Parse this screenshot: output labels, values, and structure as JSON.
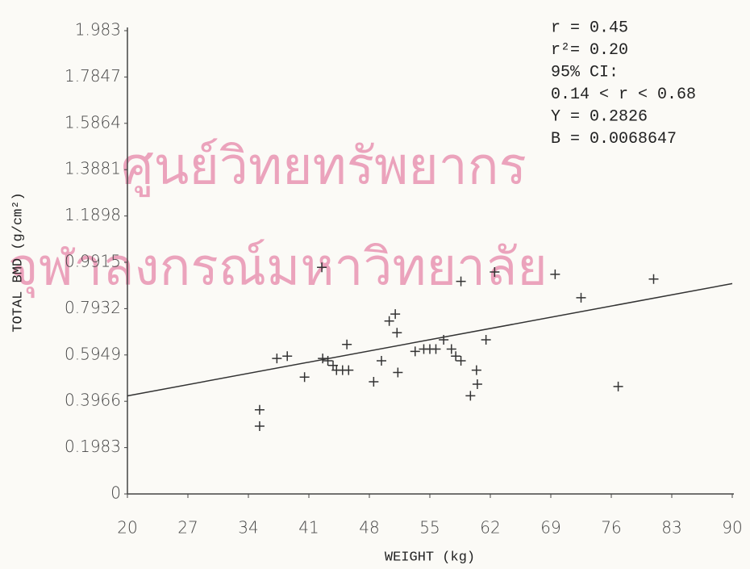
{
  "chart_data": {
    "type": "scatter",
    "x_label": "WEIGHT (kg)",
    "y_label": "TOTAL BMD (g/cm²)",
    "xlim": [
      20,
      90
    ],
    "xticks": [
      20,
      27,
      34,
      41,
      48,
      55,
      62,
      69,
      76,
      83,
      90
    ],
    "ylim": [
      0,
      1.983
    ],
    "yticks": [
      0,
      0.1983,
      0.3966,
      0.5949,
      0.7932,
      0.9915,
      1.1898,
      1.3881,
      1.5864,
      1.7847,
      1.983
    ],
    "color": "#333333",
    "x": [
      35.3,
      35.3,
      37.3,
      38.5,
      40.5,
      42.5,
      42.6,
      43.2,
      43.8,
      44.2,
      44.9,
      45.6,
      45.4,
      48.5,
      49.4,
      50.3,
      51.0,
      51.2,
      51.3,
      53.3,
      54.3,
      55.0,
      55.7,
      56.6,
      57.5,
      58.0,
      58.6,
      58.6,
      59.7,
      60.4,
      60.5,
      61.5,
      62.5,
      69.5,
      72.5,
      76.8,
      80.9
    ],
    "values": [
      0.36,
      0.29,
      0.58,
      0.59,
      0.5,
      0.97,
      0.58,
      0.57,
      0.55,
      0.53,
      0.53,
      0.53,
      0.64,
      0.48,
      0.57,
      0.74,
      0.77,
      0.69,
      0.52,
      0.61,
      0.62,
      0.62,
      0.62,
      0.66,
      0.62,
      0.59,
      0.57,
      0.91,
      0.42,
      0.53,
      0.47,
      0.66,
      0.95,
      0.94,
      0.84,
      0.46,
      0.92
    ],
    "regression": {
      "intercept": 0.2826,
      "slope": 0.0068647
    },
    "annotations": [
      "r = 0.45",
      "r²= 0.20",
      "95% CI:",
      "0.14 < r < 0.68",
      "Y = 0.2826",
      "B = 0.0068647"
    ],
    "watermark": [
      "ศูนย์วิทยทรัพยากร",
      "จุฬาลงกรณ์มหาวิทยาลัย"
    ]
  }
}
